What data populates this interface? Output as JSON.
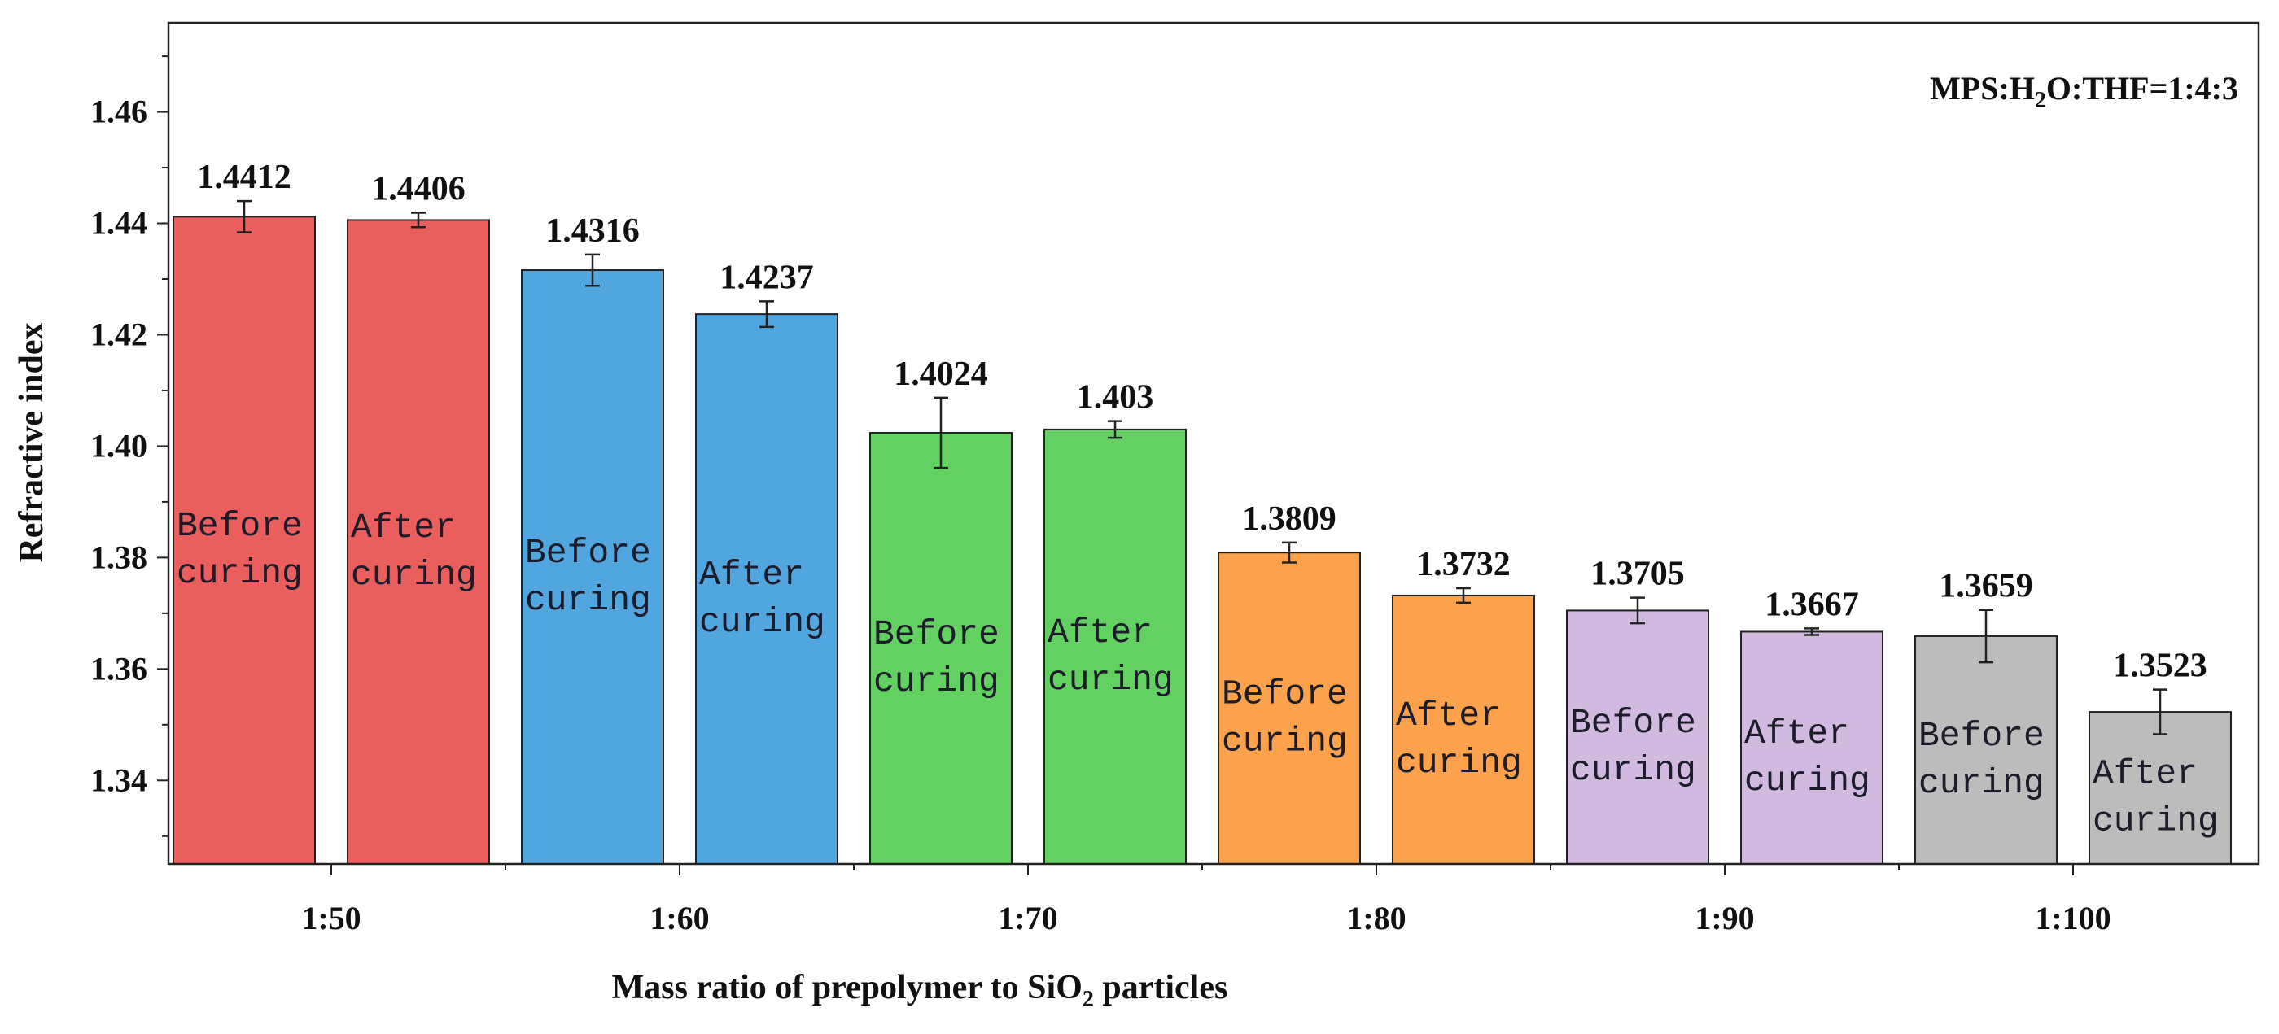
{
  "chart_data": {
    "type": "bar",
    "title": "",
    "xlabel": "Mass ratio of prepolymer to SiO",
    "xlabel_sub": "2",
    "xlabel_tail": " particles",
    "ylabel": "Refractive index",
    "ylim": [
      1.325,
      1.476
    ],
    "yticks": [
      1.34,
      1.36,
      1.38,
      1.4,
      1.42,
      1.44,
      1.46
    ],
    "ytick_labels": [
      "1.34",
      "1.36",
      "1.38",
      "1.40",
      "1.42",
      "1.44",
      "1.46"
    ],
    "categories": [
      "1:50",
      "1:60",
      "1:70",
      "1:80",
      "1:90",
      "1:100"
    ],
    "annotation": {
      "pre": "MPS:H",
      "sub": "2",
      "post": "O:THF=1:4:3"
    },
    "series": [
      {
        "name": "Before curing",
        "label_line1": "Before",
        "label_line2": "curing",
        "values": [
          1.4412,
          1.4316,
          1.4024,
          1.3809,
          1.3705,
          1.3659
        ],
        "errors": [
          0.0028,
          0.0028,
          0.0063,
          0.0018,
          0.0023,
          0.0047
        ]
      },
      {
        "name": "After curing",
        "label_line1": "After",
        "label_line2": "curing",
        "values": [
          1.4406,
          1.4237,
          1.403,
          1.3732,
          1.3667,
          1.3523
        ],
        "errors": [
          0.0013,
          0.0023,
          0.0015,
          0.0013,
          0.0006,
          0.004
        ]
      }
    ],
    "value_labels": [
      [
        "1.4412",
        "1.4316",
        "1.4024",
        "1.3809",
        "1.3705",
        "1.3659"
      ],
      [
        "1.4406",
        "1.4237",
        "1.403",
        "1.3732",
        "1.3667",
        "1.3523"
      ]
    ],
    "group_colors": [
      "#ea5e5e",
      "#52a6e0",
      "#62d161",
      "#fca24c",
      "#d2b9df",
      "#bcbcbc"
    ]
  }
}
